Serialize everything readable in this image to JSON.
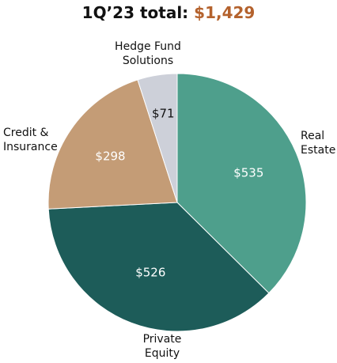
{
  "title": {
    "prefix": "1Q’23 total:",
    "value": "$1,429"
  },
  "chart_data": {
    "type": "pie",
    "title": "1Q’23 total: $1,429",
    "start": "12 o'clock",
    "direction": "clockwise",
    "slices": [
      {
        "name": "Real Estate",
        "label_lines": [
          "Real",
          "Estate"
        ],
        "value": 535,
        "value_label": "$535",
        "color": "#4e9f8c",
        "value_text_color": "#ffffff"
      },
      {
        "name": "Private Equity",
        "label_lines": [
          "Private",
          "Equity"
        ],
        "value": 526,
        "value_label": "$526",
        "color": "#1d5c59",
        "value_text_color": "#ffffff"
      },
      {
        "name": "Credit & Insurance",
        "label_lines": [
          "Credit &",
          "Insurance"
        ],
        "value": 298,
        "value_label": "$298",
        "color": "#c49c76",
        "value_text_color": "#ffffff"
      },
      {
        "name": "Hedge Fund Solutions",
        "label_lines": [
          "Hedge Fund",
          "Solutions"
        ],
        "value": 71,
        "value_label": "$71",
        "color": "#cdd0d9",
        "value_text_color": "#111111"
      }
    ]
  }
}
